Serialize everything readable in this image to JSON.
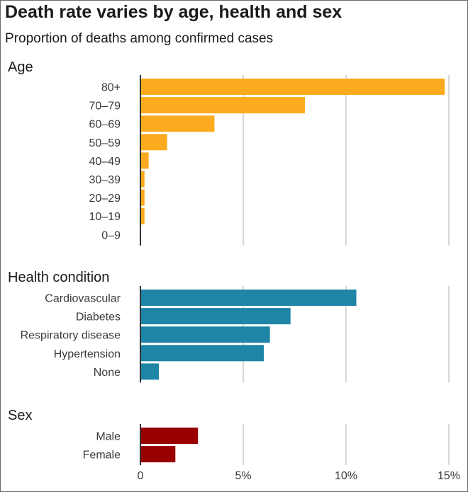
{
  "title": "Death rate varies by age, health and sex",
  "subtitle": "Proportion of deaths among confirmed cases",
  "chart_data": {
    "type": "bar",
    "orientation": "horizontal",
    "xlim": [
      0,
      15
    ],
    "x_ticks": [
      0,
      5,
      10,
      15
    ],
    "x_tick_labels": [
      "0",
      "5%",
      "10%",
      "15%"
    ],
    "grid": true,
    "groups": [
      {
        "name": "Age",
        "color": "#fcab1e",
        "categories": [
          "80+",
          "70–79",
          "60–69",
          "50–59",
          "40–49",
          "30–39",
          "20–29",
          "10–19",
          "0–9"
        ],
        "values": [
          14.8,
          8.0,
          3.6,
          1.3,
          0.4,
          0.2,
          0.2,
          0.2,
          0.0
        ]
      },
      {
        "name": "Health condition",
        "color": "#1e85a7",
        "categories": [
          "Cardiovascular",
          "Diabetes",
          "Respiratory disease",
          "Hypertension",
          "None"
        ],
        "values": [
          10.5,
          7.3,
          6.3,
          6.0,
          0.9
        ]
      },
      {
        "name": "Sex",
        "color": "#990000",
        "categories": [
          "Male",
          "Female"
        ],
        "values": [
          2.8,
          1.7
        ]
      }
    ]
  }
}
